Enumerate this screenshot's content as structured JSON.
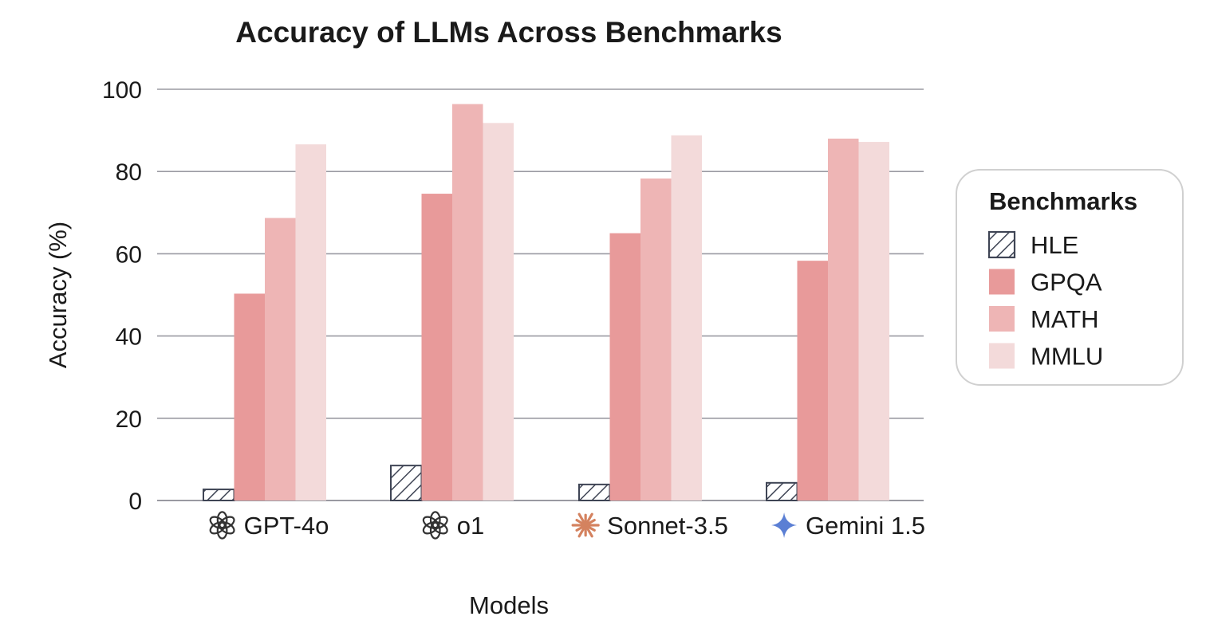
{
  "chart_data": {
    "type": "bar",
    "title": "Accuracy of LLMs Across Benchmarks",
    "xlabel": "Models",
    "ylabel": "Accuracy (%)",
    "ylim": [
      0,
      100
    ],
    "yticks": [
      0,
      20,
      40,
      60,
      80,
      100
    ],
    "grid": true,
    "legend_position": "right",
    "categories": [
      "GPT-4o",
      "o1",
      "Sonnet-3.5",
      "Gemini 1.5"
    ],
    "category_icons": [
      "openai-logo-icon",
      "openai-logo-icon",
      "anthropic-star-icon",
      "gemini-sparkle-icon"
    ],
    "legend_title": "Benchmarks",
    "series": [
      {
        "name": "HLE",
        "values": [
          2.7,
          8.5,
          3.9,
          4.3
        ],
        "color": "#ffffff",
        "pattern": "hatch",
        "stroke": "#3f4555"
      },
      {
        "name": "GPQA",
        "values": [
          50.3,
          74.6,
          65.0,
          58.3
        ],
        "color": "#e89a9a"
      },
      {
        "name": "MATH",
        "values": [
          68.7,
          96.4,
          78.3,
          88.0
        ],
        "color": "#eeb5b5"
      },
      {
        "name": "MMLU",
        "values": [
          86.6,
          91.8,
          88.8,
          87.2
        ],
        "color": "#f3dada"
      }
    ],
    "icon_colors": {
      "openai-logo-icon": "#333333",
      "anthropic-star-icon": "#d4825f",
      "gemini-sparkle-icon": "#5b7fd4"
    },
    "gridline_color": "#9a9aa2",
    "legend_border_color": "#d0d0d0"
  }
}
